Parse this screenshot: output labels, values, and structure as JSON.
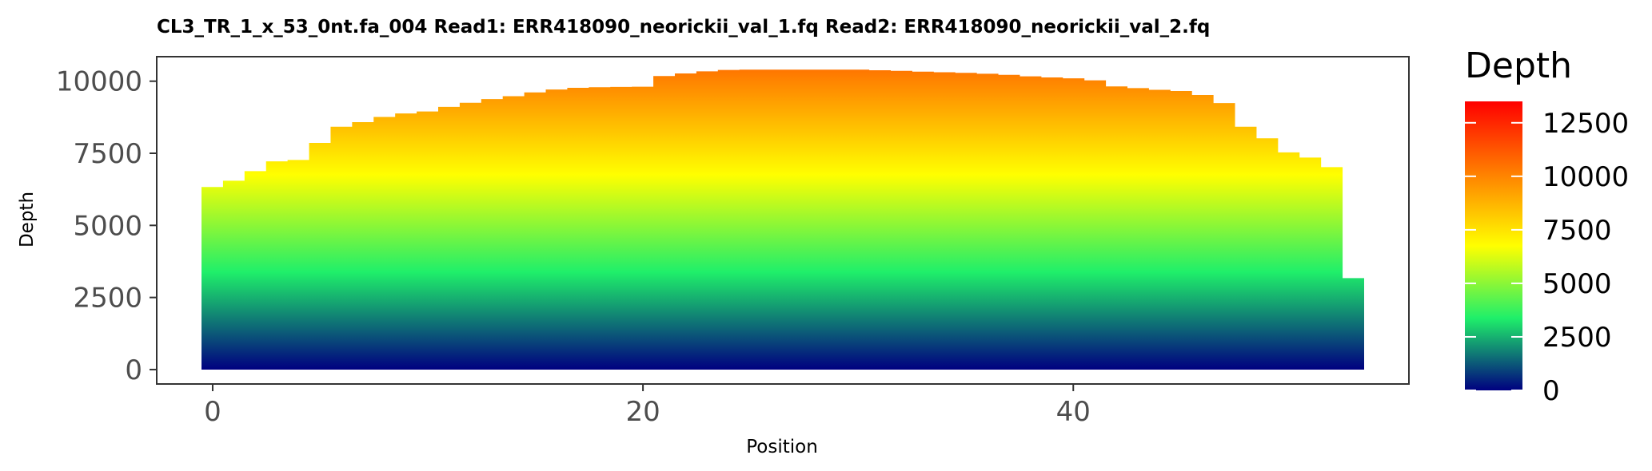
{
  "chart_data": {
    "type": "bar",
    "title": "CL3_TR_1_x_53_0nt.fa_004   Read1: ERR418090_neorickii_val_1.fq   Read2: ERR418090_neorickii_val_2.fq",
    "xlabel": "Position",
    "ylabel": "Depth",
    "xlim": [
      -2.6,
      55.6
    ],
    "ylim": [
      -500,
      10850
    ],
    "x_ticks": [
      0,
      20,
      40
    ],
    "y_ticks": [
      0,
      2500,
      5000,
      7500,
      10000
    ],
    "grid": false,
    "x": [
      0,
      1,
      2,
      3,
      4,
      5,
      6,
      7,
      8,
      9,
      10,
      11,
      12,
      13,
      14,
      15,
      16,
      17,
      18,
      19,
      20,
      21,
      22,
      23,
      24,
      25,
      26,
      27,
      28,
      29,
      30,
      31,
      32,
      33,
      34,
      35,
      36,
      37,
      38,
      39,
      40,
      41,
      42,
      43,
      44,
      45,
      46,
      47,
      48,
      49,
      50,
      51,
      52,
      53
    ],
    "values": [
      6330,
      6550,
      6880,
      7220,
      7270,
      7860,
      8420,
      8580,
      8760,
      8880,
      8950,
      9110,
      9250,
      9380,
      9480,
      9610,
      9710,
      9770,
      9790,
      9800,
      9810,
      10180,
      10270,
      10340,
      10390,
      10400,
      10400,
      10400,
      10400,
      10400,
      10400,
      10380,
      10360,
      10330,
      10310,
      10290,
      10260,
      10220,
      10170,
      10130,
      10100,
      10030,
      9820,
      9760,
      9700,
      9660,
      9520,
      9240,
      8420,
      8020,
      7530,
      7350,
      7020,
      3170
    ],
    "legend": {
      "title": "Depth",
      "position": "right",
      "breaks": [
        0,
        2500,
        5000,
        7500,
        10000,
        12500
      ],
      "range": [
        0,
        13500
      ],
      "colors": [
        "#000080",
        "#1fef6a",
        "#ffff00",
        "#ff8000",
        "#ff0000"
      ]
    }
  }
}
